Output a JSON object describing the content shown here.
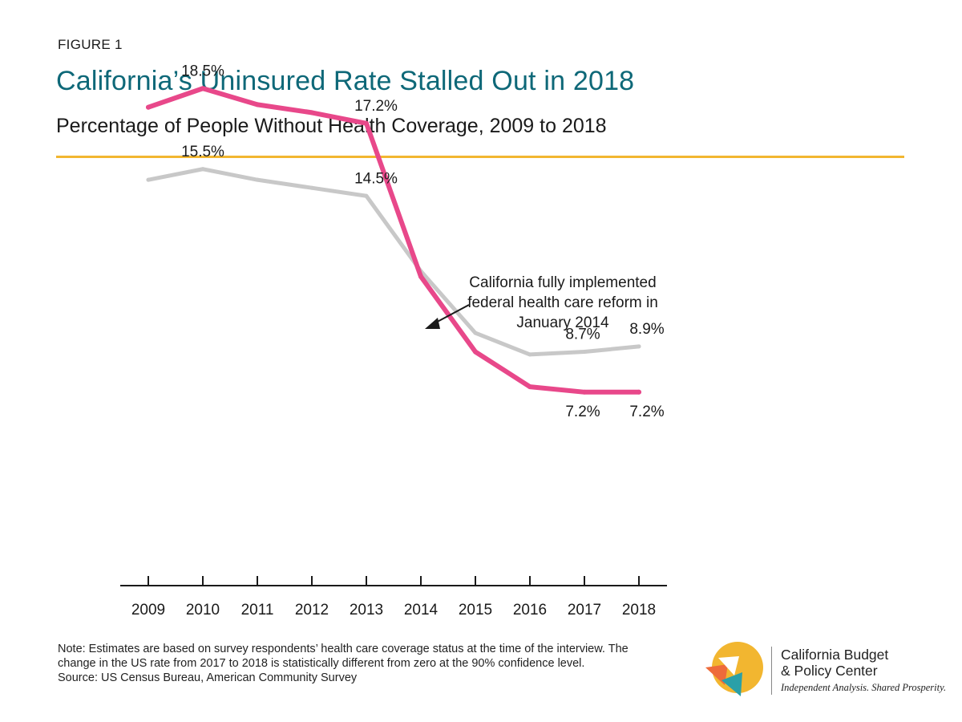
{
  "header": {
    "figure_label": "FIGURE 1",
    "title": "California’s Uninsured Rate Stalled Out in 2018",
    "subtitle": "Percentage of People Without Health Coverage, 2009 to 2018"
  },
  "colors": {
    "title": "#0e6878",
    "rule": "#f2b630",
    "california_series": "#e8488a",
    "us_series": "#c8c8c8",
    "axis": "#1a1a1a"
  },
  "chart_data": {
    "type": "line",
    "x": [
      "2009",
      "2010",
      "2011",
      "2012",
      "2013",
      "2014",
      "2015",
      "2016",
      "2017",
      "2018"
    ],
    "ylim": [
      0,
      20
    ],
    "grid": false,
    "legend": "none",
    "series": [
      {
        "key": "california",
        "values": [
          17.8,
          18.5,
          17.9,
          17.6,
          17.2,
          11.5,
          8.7,
          7.4,
          7.2,
          7.2
        ],
        "labels": [
          {
            "index": 1,
            "text": "18.5%",
            "position": "above"
          },
          {
            "index": 4,
            "text": "17.2%",
            "position": "above"
          },
          {
            "index": 8,
            "text": "7.2%",
            "position": "below"
          },
          {
            "index": 9,
            "text": "7.2%",
            "position": "below"
          }
        ]
      },
      {
        "key": "us",
        "values": [
          15.1,
          15.5,
          15.1,
          14.8,
          14.5,
          11.7,
          9.4,
          8.6,
          8.7,
          8.9
        ],
        "labels": [
          {
            "index": 1,
            "text": "15.5%",
            "position": "above"
          },
          {
            "index": 4,
            "text": "14.5%",
            "position": "above"
          },
          {
            "index": 8,
            "text": "8.7%",
            "position": "above"
          },
          {
            "index": 9,
            "text": "8.9%",
            "position": "above"
          }
        ]
      }
    ],
    "annotation": {
      "lines": [
        "California fully implemented",
        "federal health care reform in",
        "January 2014"
      ],
      "arrow_target": "2014"
    }
  },
  "footer": {
    "note": "Note: Estimates are based on survey respondents’ health care coverage status at the time of the interview. The change in the US rate from 2017 to 2018 is statistically different from zero at the 90% confidence level.",
    "source": "Source: US Census Bureau, American Community Survey"
  },
  "logo": {
    "name_line1": "California Budget",
    "name_line2": "& Policy Center",
    "tagline": "Independent Analysis. Shared Prosperity."
  }
}
